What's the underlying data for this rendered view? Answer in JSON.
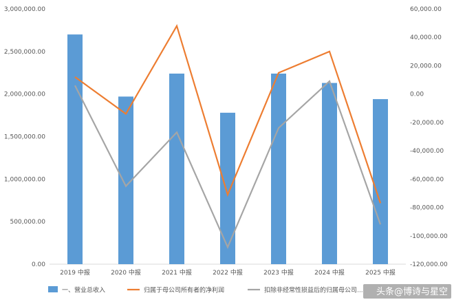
{
  "chart_data": {
    "type": "bar",
    "categories": [
      "2019 中报",
      "2020 中报",
      "2021 中报",
      "2022 中报",
      "2023 中报",
      "2024 中报",
      "2025 中报"
    ],
    "series": [
      {
        "name": "一、营业总收入",
        "type": "bar",
        "axis": "left",
        "color": "#5b9bd5",
        "values": [
          2700000,
          1970000,
          2240000,
          1780000,
          2240000,
          2130000,
          1940000
        ]
      },
      {
        "name": "归属于母公司所有者的净利润",
        "type": "line",
        "axis": "right",
        "color": "#ed7d31",
        "values": [
          12000,
          -14000,
          48000,
          -71000,
          15000,
          30000,
          -77000
        ]
      },
      {
        "name": "扣除非经常性损益后的归属母公司...",
        "type": "line",
        "axis": "right",
        "color": "#a5a5a5",
        "values": [
          6000,
          -65000,
          -27000,
          -108000,
          -24000,
          9000,
          -92000
        ]
      }
    ],
    "y_left": {
      "min": 0,
      "max": 3000000,
      "ticks": [
        "0.00",
        "500,000.00",
        "1,000,000.00",
        "1,500,000.00",
        "2,000,000.00",
        "2,500,000.00",
        "3,000,000.00"
      ]
    },
    "y_right": {
      "min": -120000,
      "max": 60000,
      "ticks": [
        "-120,000.00",
        "-100,000.00",
        "-80,000.00",
        "-60,000.00",
        "-40,000.00",
        "-20,000.00",
        "0.00",
        "20,000.00",
        "40,000.00",
        "60,000.00"
      ]
    },
    "grid": false,
    "legend_position": "bottom"
  },
  "watermark": "头条@博诗与星空"
}
